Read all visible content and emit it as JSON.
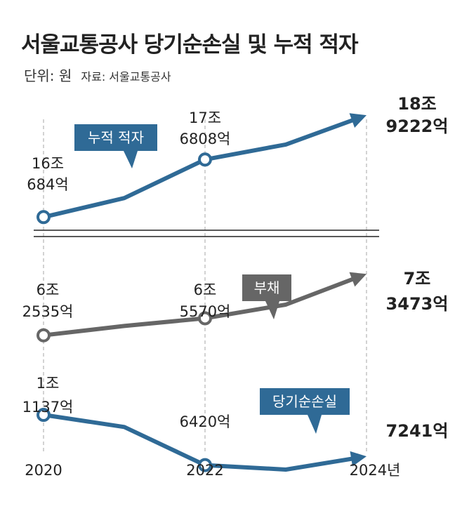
{
  "title": "서울교통공사 당기순손실 및 누적 적자",
  "unit": "단위: 원",
  "source": "자료: 서울교통공사",
  "colors": {
    "deficit": "#2f6a96",
    "debt": "#666666",
    "loss": "#2f6a96"
  },
  "chart_data": [
    {
      "type": "line",
      "name": "누적 적자",
      "tag": "누적 적자",
      "color": "#2f6a96",
      "x": [
        "2020",
        "2021",
        "2022",
        "2023",
        "2024"
      ],
      "values": [
        16.0684,
        16.6,
        17.6808,
        18.1,
        18.9222
      ],
      "labels": [
        {
          "x": "2020",
          "lines": [
            "16조",
            "684억"
          ]
        },
        {
          "x": "2022",
          "lines": [
            "17조",
            "6808억"
          ]
        },
        {
          "x": "2024",
          "lines": [
            "18조",
            "9222억"
          ],
          "bold": true
        }
      ]
    },
    {
      "type": "line",
      "name": "부채",
      "tag": "부채",
      "color": "#666666",
      "x": [
        "2020",
        "2021",
        "2022",
        "2023",
        "2024"
      ],
      "values": [
        6.2535,
        6.42,
        6.557,
        6.8,
        7.3473
      ],
      "labels": [
        {
          "x": "2020",
          "lines": [
            "6조",
            "2535억"
          ]
        },
        {
          "x": "2022",
          "lines": [
            "6조",
            "5570억"
          ]
        },
        {
          "x": "2024",
          "lines": [
            "7조",
            "3473억"
          ],
          "bold": true
        }
      ]
    },
    {
      "type": "line",
      "name": "당기순손실",
      "tag": "당기순손실",
      "color": "#2f6a96",
      "x": [
        "2020",
        "2021",
        "2022",
        "2023",
        "2024"
      ],
      "values": [
        1.1137,
        1.0,
        0.642,
        0.6,
        0.7241
      ],
      "labels": [
        {
          "x": "2020",
          "lines": [
            "1조",
            "1137억"
          ]
        },
        {
          "x": "2022",
          "lines": [
            "6420억"
          ]
        },
        {
          "x": "2024",
          "lines": [
            "7241억"
          ],
          "bold": true
        }
      ]
    }
  ],
  "x_axis": {
    "ticks": [
      "2020",
      "2022",
      "2024년"
    ]
  }
}
